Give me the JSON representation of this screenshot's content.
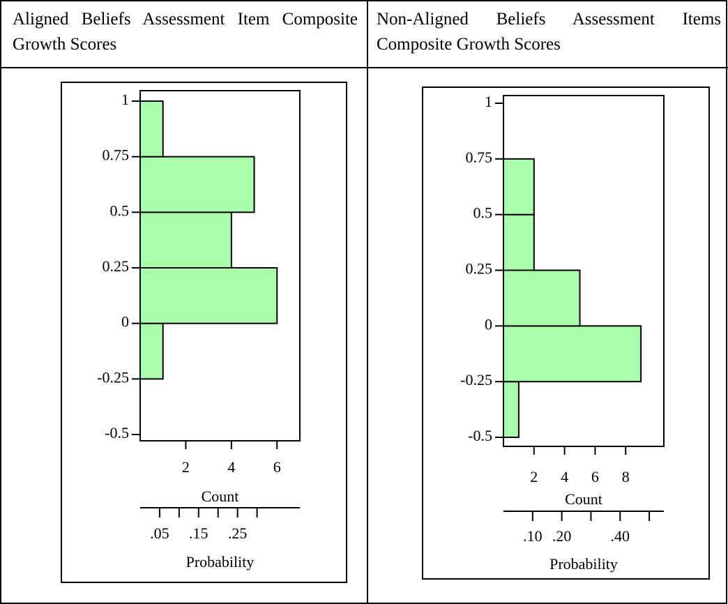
{
  "chart_data": [
    {
      "type": "histogram",
      "title": "Aligned Beliefs Assessment Item Composite Growth Scores",
      "orientation": "horizontal",
      "color": "#aaffaa",
      "bins": [
        -0.25,
        0,
        0.25,
        0.5,
        0.75,
        1
      ],
      "values": [
        1,
        6,
        4,
        5,
        1
      ],
      "ylim": [
        -0.5,
        1
      ],
      "yticks": [
        -0.5,
        -0.25,
        0,
        0.25,
        0.5,
        0.75,
        1
      ],
      "xlim": [
        0,
        7
      ],
      "xticks": [
        2,
        4,
        6
      ],
      "xlabel": "Count",
      "x2lim": [
        0,
        0.41
      ],
      "x2ticks": [
        {
          "value": 0.05,
          "label": ".05"
        },
        {
          "value": 0.15,
          "label": ".15"
        },
        {
          "value": 0.25,
          "label": ".25"
        }
      ],
      "x2minor_ticks": [
        0.1,
        0.2,
        0.3
      ],
      "x2label": "Probability"
    },
    {
      "type": "histogram",
      "title": "Non-Aligned Beliefs Assessment Items Composite Growth Scores",
      "orientation": "horizontal",
      "color": "#aaffaa",
      "bins": [
        -0.5,
        -0.25,
        0,
        0.25,
        0.5,
        0.75
      ],
      "values": [
        1,
        9,
        5,
        2,
        2
      ],
      "ylim": [
        -0.5,
        1
      ],
      "yticks": [
        -0.5,
        -0.25,
        0,
        0.25,
        0.5,
        0.75,
        1
      ],
      "xlim": [
        0,
        10.5
      ],
      "xticks": [
        2,
        4,
        6,
        8
      ],
      "xlabel": "Count",
      "x2lim": [
        0,
        0.55
      ],
      "x2ticks": [
        {
          "value": 0.1,
          "label": ".10"
        },
        {
          "value": 0.2,
          "label": ".20"
        },
        {
          "value": 0.4,
          "label": ".40"
        }
      ],
      "x2minor_ticks": [
        0.3,
        0.5
      ],
      "x2label": "Probability"
    }
  ]
}
